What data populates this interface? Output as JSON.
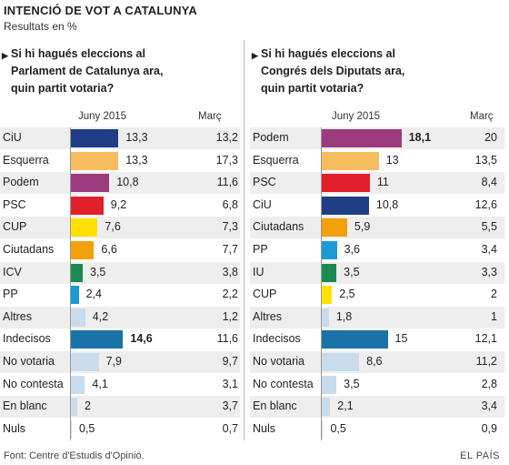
{
  "title": "INTENCIÓ DE VOT A CATALUNYA",
  "subtitle": "Resultats en %",
  "source": "Font: Centre d'Estudis d'Opinió.",
  "brand": "EL PAÍS",
  "chart_data": [
    {
      "type": "bar",
      "question": [
        "Si hi hagués eleccions al",
        "Parlament de Catalunya ara,",
        "quin partit votaria?"
      ],
      "current_label": "Juny 2015",
      "previous_label": "Març",
      "xlim": [
        0,
        20
      ],
      "categories": [
        "CiU",
        "Esquerra",
        "Podem",
        "PSC",
        "CUP",
        "Ciutadans",
        "ICV",
        "PP",
        "Altres",
        "Indecisos",
        "No votaria",
        "No contesta",
        "En blanc",
        "Nuls"
      ],
      "current_text": [
        "13,3",
        "13,3",
        "10,8",
        "9,2",
        "7,6",
        "6,6",
        "3,5",
        "2,4",
        "4,2",
        "14,6",
        "7,9",
        "4,1",
        "2",
        "0,5"
      ],
      "previous_text": [
        "13,2",
        "17,3",
        "11,6",
        "6,8",
        "7,3",
        "7,7",
        "3,8",
        "2,2",
        "1,2",
        "11,6",
        "9,7",
        "3,1",
        "3,7",
        "0,7"
      ],
      "values": [
        13.3,
        13.3,
        10.8,
        9.2,
        7.6,
        6.6,
        3.5,
        2.4,
        4.2,
        14.6,
        7.9,
        4.1,
        2,
        0.5
      ],
      "previous": [
        13.2,
        17.3,
        11.6,
        6.8,
        7.3,
        7.7,
        3.8,
        2.2,
        1.2,
        11.6,
        9.7,
        3.1,
        3.7,
        0.7
      ],
      "colors": [
        "#1f3e86",
        "#f6bd5f",
        "#9c3a7e",
        "#e2202c",
        "#ffe100",
        "#f3a10a",
        "#1a8a4e",
        "#1a9bd6",
        "#c9dceb",
        "#1a73a8",
        "#c9dceb",
        "#c9dceb",
        "#c9dceb",
        "#c9dceb"
      ],
      "highlight": "Indecisos"
    },
    {
      "type": "bar",
      "question": [
        "Si hi hagués eleccions al",
        "Congrés dels Diputats ara,",
        "quin partit votaria?"
      ],
      "current_label": "Juny 2015",
      "previous_label": "Març",
      "xlim": [
        0,
        20
      ],
      "categories": [
        "Podem",
        "Esquerra",
        "PSC",
        "CiU",
        "Ciutadans",
        "PP",
        "IU",
        "CUP",
        "Altres",
        "Indecisos",
        "No votaria",
        "No contesta",
        "En blanc",
        "Nuls"
      ],
      "current_text": [
        "18,1",
        "13",
        "11",
        "10,8",
        "5,9",
        "3,6",
        "3,5",
        "2,5",
        "1,8",
        "15",
        "8,6",
        "3,5",
        "2,1",
        "0,5"
      ],
      "previous_text": [
        "20",
        "13,5",
        "8,4",
        "12,6",
        "5,5",
        "3,4",
        "3,3",
        "2",
        "1",
        "12,1",
        "11,2",
        "2,8",
        "3,4",
        "0,9"
      ],
      "values": [
        18.1,
        13,
        11,
        10.8,
        5.9,
        3.6,
        3.5,
        2.5,
        1.8,
        15,
        8.6,
        3.5,
        2.1,
        0.5
      ],
      "previous": [
        20,
        13.5,
        8.4,
        12.6,
        5.5,
        3.4,
        3.3,
        2,
        1,
        12.1,
        11.2,
        2.8,
        3.4,
        0.9
      ],
      "colors": [
        "#9c3a7e",
        "#f6bd5f",
        "#e2202c",
        "#1f3e86",
        "#f3a10a",
        "#1a9bd6",
        "#1a8a4e",
        "#ffe100",
        "#c9dceb",
        "#1a73a8",
        "#c9dceb",
        "#c9dceb",
        "#c9dceb",
        "#c9dceb"
      ],
      "highlight": "Podem"
    }
  ]
}
